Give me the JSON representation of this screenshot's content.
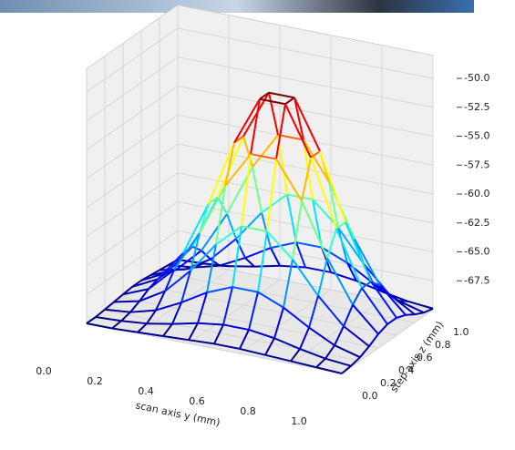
{
  "chart_data": {
    "type": "surface3d",
    "colormap": "jet",
    "grid": true,
    "xlabel": "scan axis y (mm)",
    "ylabel": "step axis z (mm)",
    "x": [
      0,
      0.1,
      0.2,
      0.3,
      0.4,
      0.5,
      0.6,
      0.7,
      0.8,
      0.9,
      1.0
    ],
    "y": [
      0,
      0.1,
      0.2,
      0.3,
      0.4,
      0.5,
      0.6,
      0.7,
      0.8,
      0.9,
      1.0
    ],
    "z": [
      [
        -70.0,
        -70.0,
        -69.9,
        -69.8,
        -69.7,
        -69.6,
        -69.6,
        -69.7,
        -69.8,
        -69.9,
        -70.0
      ],
      [
        -70.0,
        -69.9,
        -69.7,
        -69.3,
        -68.8,
        -68.5,
        -68.5,
        -68.8,
        -69.3,
        -69.7,
        -69.9
      ],
      [
        -69.9,
        -69.7,
        -69.1,
        -68.0,
        -66.7,
        -65.8,
        -65.8,
        -66.7,
        -68.0,
        -69.1,
        -69.7
      ],
      [
        -69.8,
        -69.3,
        -68.0,
        -65.8,
        -63.1,
        -61.1,
        -61.1,
        -63.1,
        -65.8,
        -68.0,
        -69.3
      ],
      [
        -69.7,
        -68.8,
        -66.7,
        -63.1,
        -58.6,
        -55.4,
        -55.4,
        -58.6,
        -63.1,
        -66.7,
        -68.8
      ],
      [
        -69.6,
        -68.5,
        -65.8,
        -61.1,
        -55.4,
        -51.2,
        -51.2,
        -55.4,
        -61.1,
        -65.8,
        -68.5
      ],
      [
        -69.6,
        -68.5,
        -65.8,
        -61.1,
        -55.4,
        -51.2,
        -51.2,
        -55.4,
        -61.1,
        -65.8,
        -68.5
      ],
      [
        -69.7,
        -68.8,
        -66.7,
        -63.1,
        -58.6,
        -55.4,
        -55.4,
        -58.6,
        -63.1,
        -66.7,
        -68.8
      ],
      [
        -69.8,
        -69.3,
        -68.0,
        -65.8,
        -63.1,
        -61.1,
        -61.1,
        -63.1,
        -65.8,
        -68.0,
        -69.3
      ],
      [
        -69.9,
        -69.7,
        -69.1,
        -68.0,
        -66.7,
        -65.8,
        -65.8,
        -66.7,
        -68.0,
        -69.1,
        -69.7
      ],
      [
        -70.0,
        -69.9,
        -69.7,
        -69.3,
        -68.8,
        -68.5,
        -68.5,
        -68.8,
        -69.3,
        -69.7,
        -69.9
      ]
    ],
    "xlim": [
      0,
      1.0
    ],
    "ylim": [
      0,
      1.0
    ],
    "zlim": [
      -70,
      -48
    ],
    "xticks": [
      {
        "value": 0,
        "label": "0.0"
      },
      0.2,
      0.4,
      0.6,
      0.8,
      {
        "value": 1,
        "label": "1.0"
      }
    ],
    "yticks": [
      {
        "value": 0,
        "label": "0.0"
      },
      0.2,
      0.4,
      0.6,
      0.8,
      {
        "value": 1,
        "label": "1.0"
      }
    ],
    "zticks": [
      {
        "value": -50,
        "label": "-50.0"
      },
      -52.5,
      {
        "value": -55,
        "label": "-55.0"
      },
      -57.5,
      {
        "value": -60,
        "label": "-60.0"
      },
      -62.5,
      {
        "value": -65,
        "label": "-65.0"
      },
      -67.5
    ]
  }
}
